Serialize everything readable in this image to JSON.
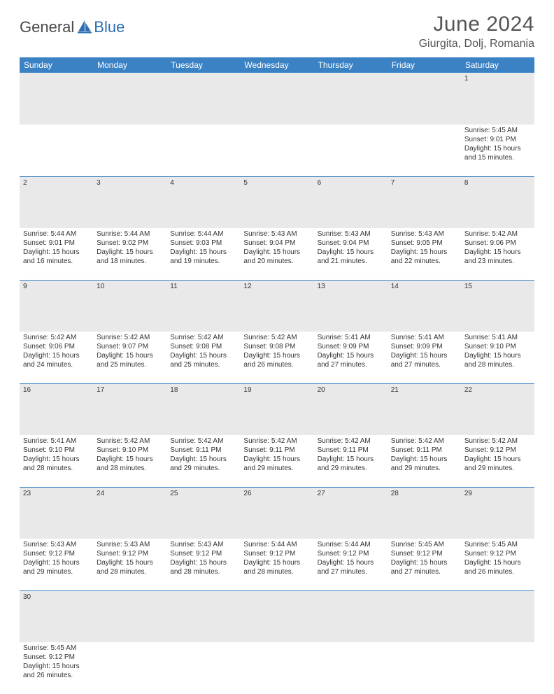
{
  "logo": {
    "general": "General",
    "blue": "Blue"
  },
  "title": "June 2024",
  "location": "Giurgita, Dolj, Romania",
  "header_bg": "#3b82c4",
  "header_text": "#ffffff",
  "daynum_bg": "#e9e9e9",
  "rule_color": "#3b82c4",
  "weekday_labels": [
    "Sunday",
    "Monday",
    "Tuesday",
    "Wednesday",
    "Thursday",
    "Friday",
    "Saturday"
  ],
  "weeks": [
    [
      null,
      null,
      null,
      null,
      null,
      null,
      {
        "n": "1",
        "sr": "Sunrise: 5:45 AM",
        "ss": "Sunset: 9:01 PM",
        "d1": "Daylight: 15 hours",
        "d2": "and 15 minutes."
      }
    ],
    [
      {
        "n": "2",
        "sr": "Sunrise: 5:44 AM",
        "ss": "Sunset: 9:01 PM",
        "d1": "Daylight: 15 hours",
        "d2": "and 16 minutes."
      },
      {
        "n": "3",
        "sr": "Sunrise: 5:44 AM",
        "ss": "Sunset: 9:02 PM",
        "d1": "Daylight: 15 hours",
        "d2": "and 18 minutes."
      },
      {
        "n": "4",
        "sr": "Sunrise: 5:44 AM",
        "ss": "Sunset: 9:03 PM",
        "d1": "Daylight: 15 hours",
        "d2": "and 19 minutes."
      },
      {
        "n": "5",
        "sr": "Sunrise: 5:43 AM",
        "ss": "Sunset: 9:04 PM",
        "d1": "Daylight: 15 hours",
        "d2": "and 20 minutes."
      },
      {
        "n": "6",
        "sr": "Sunrise: 5:43 AM",
        "ss": "Sunset: 9:04 PM",
        "d1": "Daylight: 15 hours",
        "d2": "and 21 minutes."
      },
      {
        "n": "7",
        "sr": "Sunrise: 5:43 AM",
        "ss": "Sunset: 9:05 PM",
        "d1": "Daylight: 15 hours",
        "d2": "and 22 minutes."
      },
      {
        "n": "8",
        "sr": "Sunrise: 5:42 AM",
        "ss": "Sunset: 9:06 PM",
        "d1": "Daylight: 15 hours",
        "d2": "and 23 minutes."
      }
    ],
    [
      {
        "n": "9",
        "sr": "Sunrise: 5:42 AM",
        "ss": "Sunset: 9:06 PM",
        "d1": "Daylight: 15 hours",
        "d2": "and 24 minutes."
      },
      {
        "n": "10",
        "sr": "Sunrise: 5:42 AM",
        "ss": "Sunset: 9:07 PM",
        "d1": "Daylight: 15 hours",
        "d2": "and 25 minutes."
      },
      {
        "n": "11",
        "sr": "Sunrise: 5:42 AM",
        "ss": "Sunset: 9:08 PM",
        "d1": "Daylight: 15 hours",
        "d2": "and 25 minutes."
      },
      {
        "n": "12",
        "sr": "Sunrise: 5:42 AM",
        "ss": "Sunset: 9:08 PM",
        "d1": "Daylight: 15 hours",
        "d2": "and 26 minutes."
      },
      {
        "n": "13",
        "sr": "Sunrise: 5:41 AM",
        "ss": "Sunset: 9:09 PM",
        "d1": "Daylight: 15 hours",
        "d2": "and 27 minutes."
      },
      {
        "n": "14",
        "sr": "Sunrise: 5:41 AM",
        "ss": "Sunset: 9:09 PM",
        "d1": "Daylight: 15 hours",
        "d2": "and 27 minutes."
      },
      {
        "n": "15",
        "sr": "Sunrise: 5:41 AM",
        "ss": "Sunset: 9:10 PM",
        "d1": "Daylight: 15 hours",
        "d2": "and 28 minutes."
      }
    ],
    [
      {
        "n": "16",
        "sr": "Sunrise: 5:41 AM",
        "ss": "Sunset: 9:10 PM",
        "d1": "Daylight: 15 hours",
        "d2": "and 28 minutes."
      },
      {
        "n": "17",
        "sr": "Sunrise: 5:42 AM",
        "ss": "Sunset: 9:10 PM",
        "d1": "Daylight: 15 hours",
        "d2": "and 28 minutes."
      },
      {
        "n": "18",
        "sr": "Sunrise: 5:42 AM",
        "ss": "Sunset: 9:11 PM",
        "d1": "Daylight: 15 hours",
        "d2": "and 29 minutes."
      },
      {
        "n": "19",
        "sr": "Sunrise: 5:42 AM",
        "ss": "Sunset: 9:11 PM",
        "d1": "Daylight: 15 hours",
        "d2": "and 29 minutes."
      },
      {
        "n": "20",
        "sr": "Sunrise: 5:42 AM",
        "ss": "Sunset: 9:11 PM",
        "d1": "Daylight: 15 hours",
        "d2": "and 29 minutes."
      },
      {
        "n": "21",
        "sr": "Sunrise: 5:42 AM",
        "ss": "Sunset: 9:11 PM",
        "d1": "Daylight: 15 hours",
        "d2": "and 29 minutes."
      },
      {
        "n": "22",
        "sr": "Sunrise: 5:42 AM",
        "ss": "Sunset: 9:12 PM",
        "d1": "Daylight: 15 hours",
        "d2": "and 29 minutes."
      }
    ],
    [
      {
        "n": "23",
        "sr": "Sunrise: 5:43 AM",
        "ss": "Sunset: 9:12 PM",
        "d1": "Daylight: 15 hours",
        "d2": "and 29 minutes."
      },
      {
        "n": "24",
        "sr": "Sunrise: 5:43 AM",
        "ss": "Sunset: 9:12 PM",
        "d1": "Daylight: 15 hours",
        "d2": "and 28 minutes."
      },
      {
        "n": "25",
        "sr": "Sunrise: 5:43 AM",
        "ss": "Sunset: 9:12 PM",
        "d1": "Daylight: 15 hours",
        "d2": "and 28 minutes."
      },
      {
        "n": "26",
        "sr": "Sunrise: 5:44 AM",
        "ss": "Sunset: 9:12 PM",
        "d1": "Daylight: 15 hours",
        "d2": "and 28 minutes."
      },
      {
        "n": "27",
        "sr": "Sunrise: 5:44 AM",
        "ss": "Sunset: 9:12 PM",
        "d1": "Daylight: 15 hours",
        "d2": "and 27 minutes."
      },
      {
        "n": "28",
        "sr": "Sunrise: 5:45 AM",
        "ss": "Sunset: 9:12 PM",
        "d1": "Daylight: 15 hours",
        "d2": "and 27 minutes."
      },
      {
        "n": "29",
        "sr": "Sunrise: 5:45 AM",
        "ss": "Sunset: 9:12 PM",
        "d1": "Daylight: 15 hours",
        "d2": "and 26 minutes."
      }
    ],
    [
      {
        "n": "30",
        "sr": "Sunrise: 5:45 AM",
        "ss": "Sunset: 9:12 PM",
        "d1": "Daylight: 15 hours",
        "d2": "and 26 minutes."
      },
      null,
      null,
      null,
      null,
      null,
      null
    ]
  ]
}
